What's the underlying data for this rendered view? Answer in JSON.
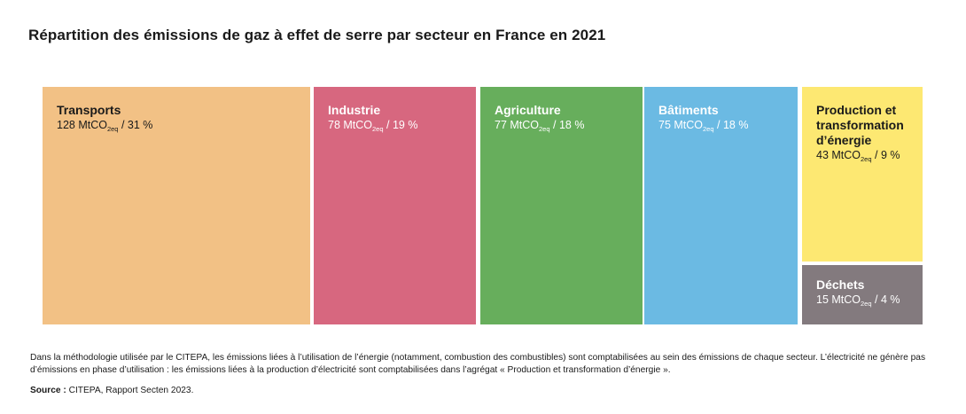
{
  "title": "Répartition des émissions de gaz à effet de serre par secteur en France en 2021",
  "chart_data": {
    "type": "treemap",
    "title": "Répartition des émissions de gaz à effet de serre par secteur en France en 2021",
    "unit_prefix": "MtCO",
    "unit_sub": "2eq",
    "items": [
      {
        "name": "Transports",
        "value": 128,
        "percent": 31,
        "color": "#F2C185",
        "text_color": "#1a1a1a"
      },
      {
        "name": "Industrie",
        "value": 78,
        "percent": 19,
        "color": "#D7677F",
        "text_color": "#ffffff"
      },
      {
        "name": "Agriculture",
        "value": 77,
        "percent": 18,
        "color": "#67AE5C",
        "text_color": "#ffffff"
      },
      {
        "name": "Bâtiments",
        "value": 75,
        "percent": 18,
        "color": "#6BBAE3",
        "text_color": "#ffffff"
      },
      {
        "name": "Production et transformation d’énergie",
        "value": 43,
        "percent": 9,
        "color": "#FDE872",
        "text_color": "#1a1a1a"
      },
      {
        "name": "Déchets",
        "value": 15,
        "percent": 4,
        "color": "#837A7E",
        "text_color": "#ffffff"
      }
    ]
  },
  "note": "Dans la méthodologie utilisée par le CITEPA, les émissions liées à l’utilisation de l’énergie (notamment, combustion des combustibles) sont comptabilisées au sein des émissions de chaque secteur. L’électricité ne génère pas d’émissions en phase d’utilisation : les émissions liées à la production d’électricité sont comptabilisées dans l’agrégat « Production et transformation d’énergie ».",
  "source": {
    "label": "Source :",
    "text": " CITEPA, Rapport Secten 2023."
  }
}
